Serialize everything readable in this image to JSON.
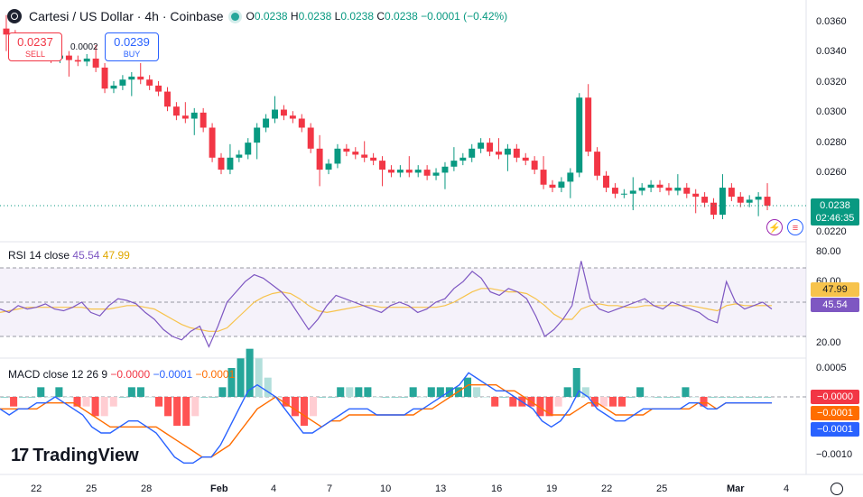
{
  "header": {
    "symbol_title": "Cartesi / US Dollar · 4h · Coinbase",
    "open_label": "O",
    "open": "0.0238",
    "high_label": "H",
    "high": "0.0238",
    "low_label": "L",
    "low": "0.0238",
    "close_label": "C",
    "close": "0.0238",
    "change": "−0.0001 (−0.42%)"
  },
  "trade": {
    "sell_price": "0.0237",
    "sell_label": "SELL",
    "buy_price": "0.0239",
    "buy_label": "BUY",
    "spread": "0.0002"
  },
  "colors": {
    "up": "#089981",
    "down": "#f23645",
    "rsi": "#7e57c2",
    "rsi_ma": "#f7c34c",
    "macd": "#2962ff",
    "signal": "#ff6d00"
  },
  "price_axis": [
    "0.0360",
    "0.0340",
    "0.0320",
    "0.0300",
    "0.0280",
    "0.0260",
    "0.0220"
  ],
  "last_price": {
    "value": "0.0238",
    "countdown": "02:46:35"
  },
  "rsi_panel": {
    "title": "RSI 14 close",
    "value": "45.54",
    "ma_value": "47.99",
    "axis": [
      "80.00",
      "60.00",
      "20.00"
    ]
  },
  "macd_panel": {
    "title": "MACD close 12 26 9",
    "hist": "−0.0000",
    "macd": "−0.0001",
    "signal": "−0.0001",
    "axis": [
      "0.0005",
      "−0.0010"
    ],
    "tag_hist": "−0.0000",
    "tag_signal": "−0.0001",
    "tag_macd": "−0.0001"
  },
  "x_axis": [
    "22",
    "25",
    "28",
    "Feb",
    "4",
    "7",
    "10",
    "13",
    "16",
    "19",
    "22",
    "25",
    "Mar",
    "4"
  ],
  "brand": {
    "name": "TradingView",
    "mark": "17"
  },
  "chart_data": [
    {
      "type": "candlestick",
      "title": "Cartesi / US Dollar · 4h · Coinbase",
      "ylim": [
        0.022,
        0.036
      ],
      "x": [
        "22",
        "25",
        "28",
        "Feb",
        "4",
        "7",
        "10",
        "13",
        "16",
        "19",
        "22",
        "25",
        "Mar",
        "4"
      ],
      "close_path": [
        0.0352,
        0.0345,
        0.0338,
        0.034,
        0.0338,
        0.0336,
        0.0338,
        0.0335,
        0.0334,
        0.0336,
        0.033,
        0.0316,
        0.0318,
        0.0322,
        0.0324,
        0.0322,
        0.0318,
        0.0314,
        0.0304,
        0.0298,
        0.0296,
        0.03,
        0.029,
        0.027,
        0.0262,
        0.027,
        0.0272,
        0.028,
        0.029,
        0.0296,
        0.0302,
        0.0298,
        0.0296,
        0.029,
        0.0276,
        0.0262,
        0.0266,
        0.0276,
        0.0274,
        0.0272,
        0.027,
        0.0268,
        0.0262,
        0.026,
        0.0262,
        0.026,
        0.0262,
        0.0258,
        0.026,
        0.0264,
        0.0268,
        0.027,
        0.0276,
        0.028,
        0.0274,
        0.0272,
        0.0276,
        0.027,
        0.0268,
        0.0262,
        0.0252,
        0.025,
        0.0254,
        0.026,
        0.031,
        0.0274,
        0.0258,
        0.025,
        0.0246,
        0.0246,
        0.0248,
        0.025,
        0.0252,
        0.025,
        0.0248,
        0.025,
        0.0246,
        0.0244,
        0.024,
        0.0232,
        0.025,
        0.0244,
        0.024,
        0.0242,
        0.0244,
        0.0238
      ],
      "last": 0.0238
    },
    {
      "type": "line",
      "title": "RSI 14 close",
      "ylim": [
        20,
        80
      ],
      "bands": [
        30,
        50,
        70
      ],
      "series": [
        {
          "name": "RSI",
          "values": [
            46,
            44,
            48,
            46,
            47,
            49,
            46,
            45,
            47,
            50,
            44,
            42,
            48,
            52,
            51,
            49,
            44,
            40,
            34,
            30,
            28,
            33,
            36,
            24,
            36,
            50,
            56,
            62,
            66,
            64,
            60,
            56,
            50,
            42,
            34,
            40,
            48,
            54,
            52,
            50,
            48,
            46,
            44,
            48,
            50,
            48,
            44,
            46,
            50,
            52,
            58,
            62,
            68,
            64,
            56,
            54,
            58,
            56,
            52,
            42,
            30,
            34,
            40,
            48,
            74,
            52,
            46,
            44,
            46,
            48,
            50,
            52,
            48,
            46,
            50,
            48,
            46,
            44,
            40,
            38,
            62,
            50,
            46,
            48,
            50,
            46
          ]
        },
        {
          "name": "MA",
          "values": [
            44,
            45,
            46,
            47,
            47,
            47,
            47,
            47,
            47,
            47,
            46,
            46,
            46,
            47,
            48,
            48,
            47,
            46,
            43,
            40,
            37,
            35,
            34,
            33,
            33,
            35,
            40,
            45,
            50,
            53,
            55,
            56,
            55,
            52,
            48,
            45,
            44,
            45,
            46,
            47,
            48,
            48,
            47,
            47,
            47,
            47,
            47,
            47,
            47,
            48,
            50,
            53,
            56,
            58,
            58,
            57,
            56,
            56,
            55,
            52,
            48,
            43,
            40,
            40,
            46,
            48,
            49,
            48,
            48,
            47,
            47,
            48,
            48,
            48,
            48,
            48,
            48,
            47,
            46,
            45,
            48,
            49,
            48,
            48,
            48,
            48
          ]
        }
      ]
    },
    {
      "type": "line",
      "title": "MACD close 12 26 9",
      "ylim": [
        -0.0012,
        0.0006
      ],
      "series": [
        {
          "name": "MACD",
          "values": [
            -0.0002,
            -0.0003,
            -0.0002,
            -0.0002,
            -0.0001,
            -0.0001,
            0.0,
            -0.0001,
            -0.0002,
            -0.0003,
            -0.0005,
            -0.0006,
            -0.0006,
            -0.0005,
            -0.0004,
            -0.0004,
            -0.0005,
            -0.0006,
            -0.0008,
            -0.001,
            -0.0011,
            -0.0011,
            -0.001,
            -0.001,
            -0.0008,
            -0.0005,
            -0.0002,
            0.0001,
            0.0002,
            0.0001,
            0.0,
            -0.0002,
            -0.0004,
            -0.0006,
            -0.0006,
            -0.0005,
            -0.0004,
            -0.0003,
            -0.0002,
            -0.0002,
            -0.0002,
            -0.0003,
            -0.0003,
            -0.0003,
            -0.0003,
            -0.0002,
            -0.0002,
            -0.0001,
            0.0,
            0.0001,
            0.0002,
            0.0004,
            0.0003,
            0.0002,
            0.0001,
            0.0001,
            0.0,
            -0.0001,
            -0.0002,
            -0.0004,
            -0.0005,
            -0.0004,
            -0.0002,
            0.0001,
            0.0,
            -0.0002,
            -0.0003,
            -0.0004,
            -0.0004,
            -0.0003,
            -0.0002,
            -0.0002,
            -0.0002,
            -0.0002,
            -0.0002,
            -0.0001,
            -0.0001,
            -0.0002,
            -0.0002,
            -0.0001,
            -0.0001,
            -0.0001,
            -0.0001,
            -0.0001,
            -0.0001
          ]
        },
        {
          "name": "Signal",
          "values": [
            -0.0002,
            -0.0002,
            -0.0002,
            -0.0002,
            -0.0002,
            -0.0001,
            -0.0001,
            -0.0001,
            -0.0001,
            -0.0002,
            -0.0003,
            -0.0004,
            -0.0005,
            -0.0005,
            -0.0005,
            -0.0005,
            -0.0005,
            -0.0005,
            -0.0006,
            -0.0007,
            -0.0008,
            -0.0009,
            -0.001,
            -0.001,
            -0.0009,
            -0.0008,
            -0.0006,
            -0.0004,
            -0.0002,
            -0.0001,
            0.0,
            -0.0001,
            -0.0002,
            -0.0003,
            -0.0004,
            -0.0005,
            -0.0004,
            -0.0004,
            -0.0003,
            -0.0003,
            -0.0003,
            -0.0003,
            -0.0003,
            -0.0003,
            -0.0003,
            -0.0003,
            -0.0002,
            -0.0002,
            -0.0001,
            0.0,
            0.0001,
            0.0002,
            0.0002,
            0.0002,
            0.0002,
            0.0001,
            0.0001,
            0.0,
            -0.0001,
            -0.0002,
            -0.0003,
            -0.0003,
            -0.0003,
            -0.0002,
            -0.0001,
            -0.0001,
            -0.0002,
            -0.0003,
            -0.0003,
            -0.0003,
            -0.0003,
            -0.0002,
            -0.0002,
            -0.0002,
            -0.0002,
            -0.0002,
            -0.0001,
            -0.0001,
            -0.0002,
            -0.0001,
            -0.0001,
            -0.0001,
            -0.0001,
            -0.0001,
            -0.0001
          ]
        }
      ]
    }
  ]
}
